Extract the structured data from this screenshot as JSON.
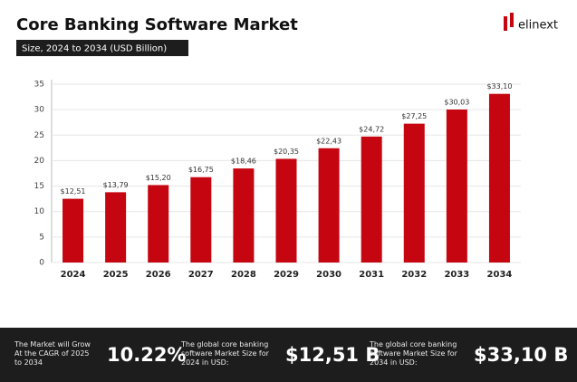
{
  "chart_data": {
    "type": "bar",
    "title": "Core Banking Software Market",
    "subtitle": "Size, 2024 to 2034 (USD Billion)",
    "categories": [
      "2024",
      "2025",
      "2026",
      "2027",
      "2028",
      "2029",
      "2030",
      "2031",
      "2032",
      "2033",
      "2034"
    ],
    "values": [
      12.51,
      13.79,
      15.2,
      16.75,
      18.46,
      20.35,
      22.43,
      24.72,
      27.25,
      30.03,
      33.1
    ],
    "value_labels": [
      "$12,51",
      "$13,79",
      "$15,20",
      "$16,75",
      "$18,46",
      "$20,35",
      "$22,43",
      "$24,72",
      "$27,25",
      "$30,03",
      "$33,10"
    ],
    "color": "#c5050f",
    "ylim": [
      0,
      35
    ],
    "yticks": [
      0,
      5,
      10,
      15,
      20,
      25,
      30,
      35
    ],
    "grid": true
  },
  "logo": "elinext",
  "footer": {
    "stats": [
      {
        "label": "The Market will Grow At the CAGR of 2025 to 2034",
        "value": "10.22%"
      },
      {
        "label": "The global core banking software Market Size for 2024 in USD:",
        "value": "$12,51 B"
      },
      {
        "label": "The global core banking software Market Size for 2034 in USD:",
        "value": "$33,10 B"
      }
    ]
  }
}
